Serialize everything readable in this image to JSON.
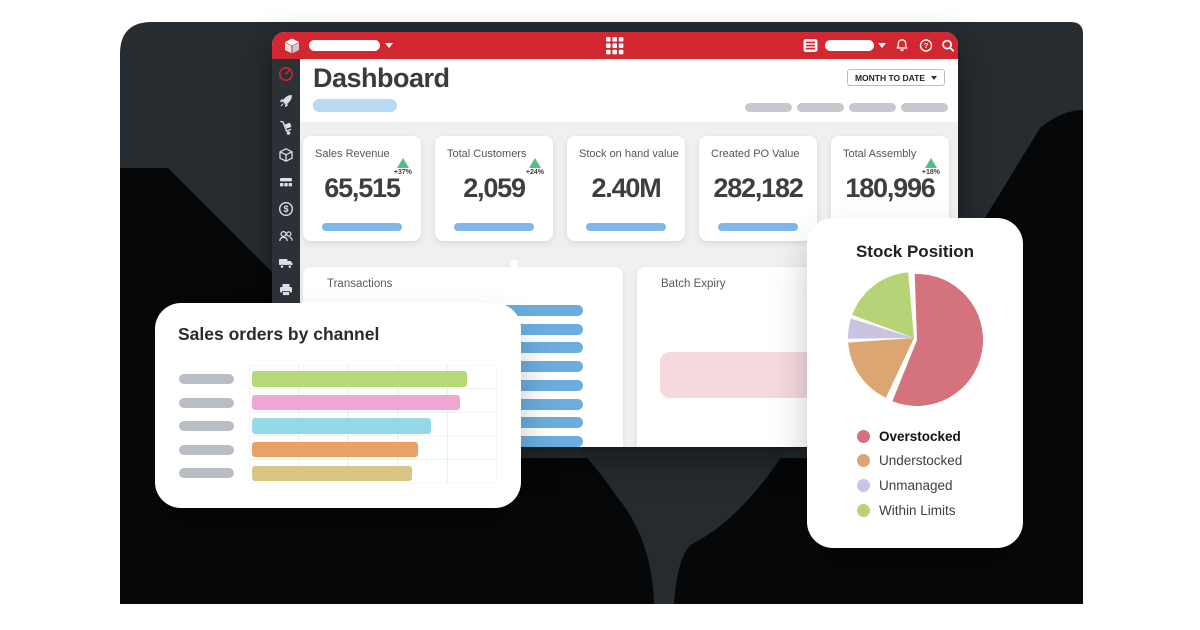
{
  "window": {
    "topbar": {
      "logo_icon": "cube-logo",
      "brand_selector": {
        "placeholder_pill": true
      },
      "apps_icon": "apps-grid",
      "right": {
        "org_icon": "org-switcher",
        "user_pill": true,
        "bell_icon": "bell",
        "help_icon": "help-circle",
        "search_icon": "search"
      }
    },
    "sidebar_icons": [
      "gauge",
      "rocket",
      "hand-truck",
      "box",
      "assembly",
      "dollar",
      "customers",
      "truck",
      "printer"
    ],
    "page_title": "Dashboard",
    "period_button_label": "MONTH TO DATE",
    "menu_pill_count": 4
  },
  "kpis": [
    {
      "label": "Sales Revenue",
      "value": "65,515",
      "delta": "+37%"
    },
    {
      "label": "Total Customers",
      "value": "2,059",
      "delta": "+24%"
    },
    {
      "label": "Stock on hand value",
      "value": "2.40M",
      "delta": null
    },
    {
      "label": "Created PO Value",
      "value": "282,182",
      "delta": null
    },
    {
      "label": "Total Assembly",
      "value": "180,996",
      "delta": "+18%"
    }
  ],
  "panels": {
    "transactions": {
      "title": "Transactions",
      "bar_count": 8,
      "bar_color": "#6badde"
    },
    "batch_expiry": {
      "title": "Batch Expiry",
      "block_color": "#f5d9de"
    }
  },
  "channel_card": {
    "title": "Sales orders by channel",
    "chart_data": {
      "type": "bar",
      "orientation": "horizontal",
      "categories": [
        "",
        "",
        "",
        "",
        ""
      ],
      "values": [
        215,
        208,
        179,
        166,
        160
      ],
      "colors": [
        "#b5d879",
        "#eda7d2",
        "#95d9e9",
        "#e9a265",
        "#d9c685"
      ],
      "xlim": [
        0,
        248
      ],
      "grid": true
    }
  },
  "stock_card": {
    "title": "Stock Position",
    "chart_data": {
      "type": "pie",
      "labels": [
        "Overstocked",
        "Understocked",
        "Unmanaged",
        "Within Limits"
      ],
      "values": [
        57,
        17,
        5,
        18
      ],
      "colors": [
        "#d4737e",
        "#dca673",
        "#cbc3e2",
        "#b7d377"
      ]
    }
  },
  "colors": {
    "topbar_red": "#d22730",
    "sidebar": "#2c3137",
    "silhouette_charcoal": "#272c31",
    "silhouette_black": "#050708",
    "content_gray": "#eff0f1",
    "kpi_pill_blue": "#7fb8e8",
    "title_pill_blue": "#b9d8f1"
  }
}
